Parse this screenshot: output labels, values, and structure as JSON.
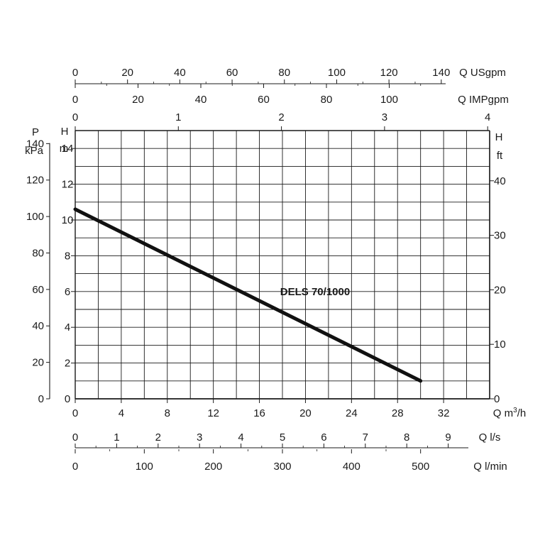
{
  "chart_data": {
    "type": "line",
    "annotation": "DELS 70/1000",
    "series": [
      {
        "name": "DELS 70/1000",
        "x": [
          0,
          30
        ],
        "y": [
          10.6,
          1.0
        ]
      }
    ],
    "xlabel": "Q m³/h",
    "ylabel": "H m",
    "xlim": [
      0,
      36
    ],
    "ylim": [
      0,
      15
    ],
    "grid": true,
    "axes": {
      "m3h": {
        "label_main": "Q m",
        "label_sup": "3",
        "label_tail": "/h",
        "ticks": [
          0,
          4,
          8,
          12,
          16,
          20,
          24,
          28,
          32
        ],
        "min": 0,
        "max": 36
      },
      "ls": {
        "label": "Q l/s",
        "ticks": [
          0,
          1,
          2,
          3,
          4,
          5,
          6,
          7,
          8,
          9
        ]
      },
      "lmin": {
        "label": "Q l/min",
        "ticks": [
          0,
          100,
          200,
          300,
          400,
          500
        ]
      },
      "usgpm": {
        "label": "Q USgpm",
        "ticks": [
          0,
          20,
          40,
          60,
          80,
          100,
          120,
          140
        ]
      },
      "impgpm": {
        "label": "Q IMPgpm",
        "ticks": [
          0,
          20,
          40,
          60,
          80,
          100
        ]
      },
      "top_m3h": {
        "ticks": [
          0,
          1,
          2,
          3,
          4
        ]
      },
      "h_m": {
        "label_top": "H",
        "label_unit": "m",
        "ticks": [
          0,
          2,
          4,
          6,
          8,
          10,
          12,
          14
        ],
        "min": 0,
        "max": 15
      },
      "p_kpa": {
        "label_top": "P",
        "label_unit": "kPa",
        "ticks": [
          0,
          20,
          40,
          60,
          80,
          100,
          120,
          140
        ]
      },
      "h_ft": {
        "label_top": "H",
        "label_unit": "ft",
        "ticks": [
          0,
          10,
          20,
          30,
          40
        ]
      }
    }
  }
}
